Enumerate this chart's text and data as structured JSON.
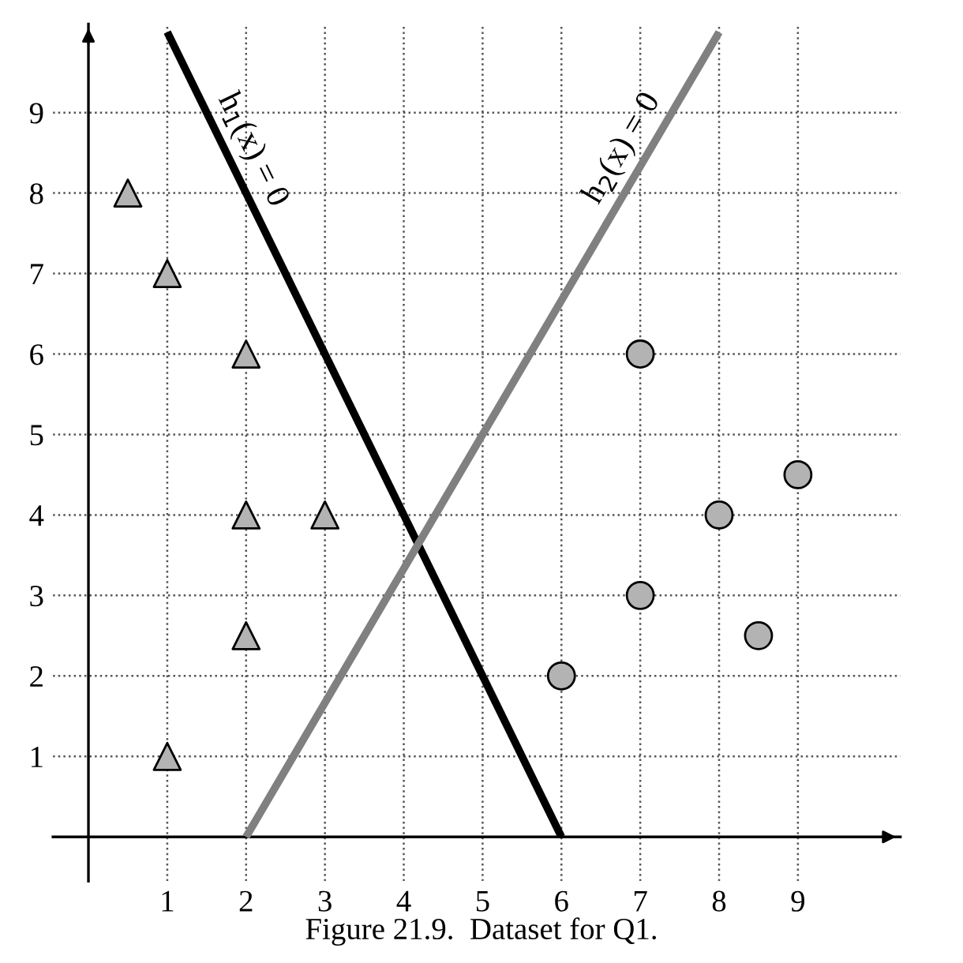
{
  "chart_data": {
    "type": "scatter",
    "annotations": [
      "Figure 21.9.  Dataset for Q1."
    ],
    "xlim": [
      -0.45,
      10.3
    ],
    "ylim": [
      -0.55,
      10.1
    ],
    "xticks": [
      1,
      2,
      3,
      4,
      5,
      6,
      7,
      8,
      9
    ],
    "yticks": [
      1,
      2,
      3,
      4,
      5,
      6,
      7,
      8,
      9
    ],
    "grid": true,
    "legend": false,
    "series": [
      {
        "marker": "triangle",
        "color": "#b3b3b3",
        "x": [
          0.5,
          1,
          2,
          2,
          3,
          2,
          1
        ],
        "values": [
          8,
          7,
          6,
          4,
          4,
          2.5,
          1
        ]
      },
      {
        "marker": "circle",
        "color": "#b3b3b3",
        "x": [
          7,
          6,
          7,
          8,
          8.5,
          9
        ],
        "values": [
          6,
          2,
          3,
          4,
          2.5,
          4.5
        ]
      },
      {
        "type": "line",
        "name": "h$_{1}$(x) = 0",
        "color": "#000000",
        "x": [
          1,
          6
        ],
        "values": [
          10,
          0
        ]
      },
      {
        "type": "line",
        "name": "h$_{2}$(x) = 0",
        "color": "#808080",
        "x": [
          2,
          8
        ],
        "values": [
          0,
          10
        ]
      }
    ]
  }
}
